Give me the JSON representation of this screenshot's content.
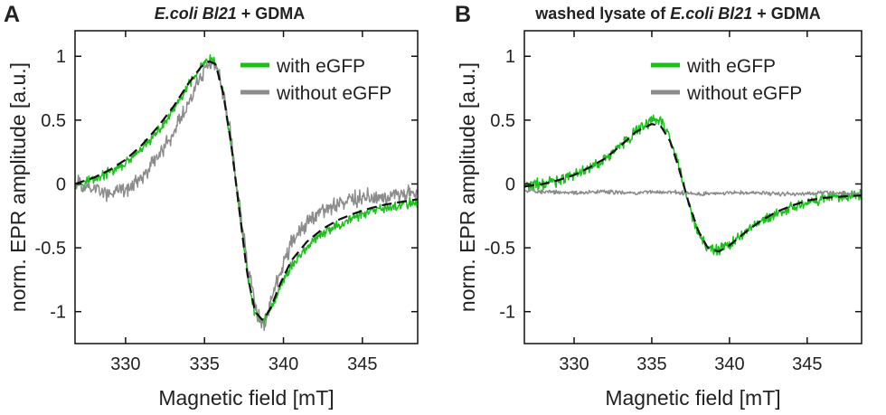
{
  "chart_data": [
    {
      "type": "line",
      "panel_label": "A",
      "title_parts": [
        {
          "text": "E.coli Bl21",
          "italic": true
        },
        {
          "text": " + GDMA",
          "italic": false
        }
      ],
      "xlabel": "Magnetic field [mT]",
      "ylabel": "norm. EPR amplitude [a.u.]",
      "xlim": [
        326.8,
        348.5
      ],
      "ylim": [
        -1.25,
        1.2
      ],
      "xticks": [
        330,
        335,
        340,
        345
      ],
      "yticks": [
        1,
        0.5,
        0,
        -0.5,
        -1
      ],
      "xtick_labels": [
        "330",
        "335",
        "340",
        "345"
      ],
      "ytick_labels": [
        "1",
        "0.5",
        "0",
        "-0.5",
        "-1"
      ],
      "grid": false,
      "legend_position": "top-right",
      "legend": [
        "with eGFP",
        "without eGFP"
      ],
      "series": [
        {
          "name": "with eGFP",
          "color": "#19c219",
          "noise": 0.03,
          "x": [
            326.8,
            328,
            329,
            330,
            331,
            332,
            333,
            334,
            334.8,
            335.3,
            335.7,
            336.2,
            336.7,
            337.2,
            337.7,
            338.2,
            338.7,
            339.2,
            339.8,
            340.5,
            341.5,
            342.5,
            343.5,
            344.5,
            345.5,
            346.5,
            347.5,
            348.5
          ],
          "y": [
            0.0,
            0.04,
            0.09,
            0.16,
            0.27,
            0.4,
            0.57,
            0.77,
            0.92,
            0.97,
            0.95,
            0.7,
            0.3,
            -0.2,
            -0.7,
            -1.02,
            -1.08,
            -0.98,
            -0.8,
            -0.64,
            -0.49,
            -0.39,
            -0.32,
            -0.26,
            -0.22,
            -0.19,
            -0.16,
            -0.14
          ]
        },
        {
          "name": "without eGFP",
          "color": "#8c8c8c",
          "noise": 0.05,
          "x": [
            326.8,
            328,
            329,
            330,
            331,
            332,
            333,
            334,
            334.8,
            335.3,
            335.7,
            336.2,
            336.7,
            337.2,
            337.7,
            338.2,
            338.6,
            338.9,
            339.3,
            339.8,
            340.5,
            341.5,
            342.5,
            343.5,
            344.5,
            345.5,
            346.5,
            347.5,
            348.5
          ],
          "y": [
            0.0,
            -0.04,
            -0.08,
            -0.05,
            0.05,
            0.2,
            0.4,
            0.63,
            0.86,
            0.95,
            0.93,
            0.72,
            0.35,
            -0.15,
            -0.6,
            -0.95,
            -1.1,
            -1.07,
            -0.9,
            -0.68,
            -0.47,
            -0.3,
            -0.2,
            -0.15,
            -0.12,
            -0.1,
            -0.09,
            -0.08,
            -0.08
          ]
        },
        {
          "name": "",
          "color": "#111111",
          "dashed": true,
          "x": [
            326.8,
            328,
            329,
            330,
            331,
            332,
            333,
            334,
            334.8,
            335.3,
            335.7,
            336.2,
            336.7,
            337.2,
            337.7,
            338.2,
            338.7,
            339.2,
            339.8,
            340.5,
            341.5,
            342.5,
            343.5,
            344.5,
            345.5,
            346.5,
            347.5,
            348.5
          ],
          "y": [
            0.0,
            0.05,
            0.11,
            0.19,
            0.3,
            0.44,
            0.6,
            0.79,
            0.92,
            0.96,
            0.94,
            0.7,
            0.3,
            -0.2,
            -0.7,
            -1.0,
            -1.07,
            -0.97,
            -0.78,
            -0.6,
            -0.45,
            -0.35,
            -0.28,
            -0.23,
            -0.19,
            -0.16,
            -0.14,
            -0.12
          ]
        }
      ]
    },
    {
      "type": "line",
      "panel_label": "B",
      "title_parts": [
        {
          "text": "washed lysate of ",
          "italic": false
        },
        {
          "text": "E.coli Bl21",
          "italic": true
        },
        {
          "text": " + GDMA",
          "italic": false
        }
      ],
      "xlabel": "Magnetic field [mT]",
      "ylabel": "norm. EPR amplitude [a.u.]",
      "xlim": [
        326.8,
        348.5
      ],
      "ylim": [
        -1.25,
        1.2
      ],
      "xticks": [
        330,
        335,
        340,
        345
      ],
      "yticks": [
        1,
        0.5,
        0,
        -0.5,
        -1
      ],
      "xtick_labels": [
        "330",
        "335",
        "340",
        "345"
      ],
      "ytick_labels": [
        "1",
        "0.5",
        "0",
        "-0.5",
        "-1"
      ],
      "grid": false,
      "legend_position": "top-right",
      "legend": [
        "with eGFP",
        "without eGFP"
      ],
      "series": [
        {
          "name": "with eGFP",
          "color": "#19c219",
          "noise": 0.035,
          "x": [
            326.8,
            328,
            329,
            330,
            331,
            332,
            333,
            334,
            335,
            335.6,
            336.2,
            336.8,
            337.4,
            338,
            338.6,
            339.3,
            340,
            341,
            342,
            343,
            344,
            345,
            346,
            347,
            348.5
          ],
          "y": [
            -0.02,
            0.0,
            0.03,
            0.07,
            0.13,
            0.2,
            0.3,
            0.42,
            0.5,
            0.5,
            0.35,
            0.1,
            -0.17,
            -0.38,
            -0.5,
            -0.52,
            -0.48,
            -0.38,
            -0.3,
            -0.24,
            -0.18,
            -0.14,
            -0.12,
            -0.1,
            -0.09
          ]
        },
        {
          "name": "without eGFP",
          "color": "#8c8c8c",
          "noise": 0.012,
          "x": [
            326.8,
            328,
            330,
            332,
            334,
            336,
            338,
            340,
            342,
            344,
            346,
            348.5
          ],
          "y": [
            -0.05,
            -0.06,
            -0.07,
            -0.06,
            -0.07,
            -0.06,
            -0.08,
            -0.07,
            -0.07,
            -0.08,
            -0.07,
            -0.08
          ]
        },
        {
          "name": "",
          "color": "#111111",
          "dashed": true,
          "x": [
            326.8,
            328,
            329,
            330,
            331,
            332,
            333,
            334,
            335,
            335.6,
            336.2,
            336.8,
            337.4,
            338,
            338.6,
            339.3,
            340,
            341,
            342,
            343,
            344,
            345,
            346,
            347,
            348.5
          ],
          "y": [
            -0.02,
            0.0,
            0.03,
            0.07,
            0.13,
            0.2,
            0.3,
            0.41,
            0.47,
            0.45,
            0.33,
            0.1,
            -0.16,
            -0.37,
            -0.5,
            -0.53,
            -0.48,
            -0.38,
            -0.29,
            -0.22,
            -0.17,
            -0.13,
            -0.11,
            -0.1,
            -0.09
          ]
        }
      ]
    }
  ]
}
